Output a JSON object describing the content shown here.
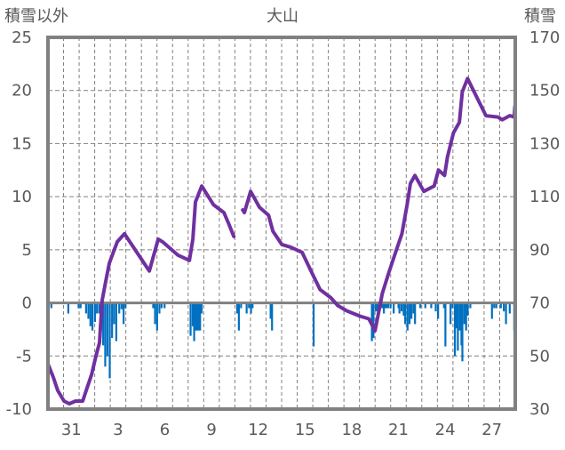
{
  "chart_data": {
    "type": "bar+line",
    "title": "大山",
    "ylabel_left": "積雪以外",
    "ylabel_right": "積雪",
    "ylim_left": [
      -10,
      25
    ],
    "ylim_right": [
      30,
      170
    ],
    "yticks_left": [
      "25",
      "20",
      "15",
      "10",
      "5",
      "0",
      "-5",
      "-10"
    ],
    "yticks_right": [
      "170",
      "150",
      "130",
      "110",
      "90",
      "70",
      "50",
      "30"
    ],
    "xlim_days": [
      0,
      30
    ],
    "xtick_labels": [
      "31",
      "3",
      "6",
      "9",
      "12",
      "15",
      "18",
      "21",
      "24",
      "27"
    ],
    "xtick_positions_days": [
      1.5,
      4.5,
      7.5,
      10.5,
      13.5,
      16.5,
      19.5,
      22.5,
      25.5,
      28.5
    ],
    "grid": true,
    "colors": {
      "line": "#7030a0",
      "bars": "#0070c0",
      "frame": "#808080",
      "grid": "#808080"
    },
    "series": [
      {
        "name": "積雪",
        "axis": "right",
        "type": "line",
        "points": [
          [
            0,
            47
          ],
          [
            0.34,
            42
          ],
          [
            0.63,
            37
          ],
          [
            1.03,
            33
          ],
          [
            1.37,
            32
          ],
          [
            1.77,
            33
          ],
          [
            2.23,
            33
          ],
          [
            2.45,
            37
          ],
          [
            2.8,
            43
          ],
          [
            3.08,
            50
          ],
          [
            3.31,
            55
          ],
          [
            3.48,
            71
          ],
          [
            3.77,
            80
          ],
          [
            3.94,
            85
          ],
          [
            4.45,
            93
          ],
          [
            4.91,
            96
          ],
          [
            6.51,
            82
          ],
          [
            7.08,
            94
          ],
          [
            7.36,
            93
          ],
          [
            8.33,
            88
          ],
          [
            9.08,
            86
          ],
          [
            9.3,
            94
          ],
          [
            9.47,
            108
          ],
          [
            9.87,
            114
          ],
          [
            10.62,
            107
          ],
          [
            11.3,
            104
          ],
          [
            11.59,
            100
          ],
          [
            11.93,
            95
          ],
          null,
          [
            12.5,
            105
          ],
          [
            12.61,
            104
          ],
          [
            13.01,
            112
          ],
          [
            13.58,
            106
          ],
          [
            14.16,
            103
          ],
          [
            14.44,
            97
          ],
          [
            15.01,
            92
          ],
          [
            15.58,
            91
          ],
          [
            16.32,
            89
          ],
          [
            16.89,
            82
          ],
          [
            17.47,
            75
          ],
          [
            18.15,
            72
          ],
          [
            18.61,
            69
          ],
          [
            19.18,
            67
          ],
          [
            20.03,
            65
          ],
          [
            20.6,
            64
          ],
          [
            21.0,
            59.5
          ],
          [
            21.46,
            73.5
          ],
          [
            21.86,
            81
          ],
          [
            22.32,
            89
          ],
          [
            22.72,
            96
          ],
          [
            23.06,
            107
          ],
          [
            23.27,
            115
          ],
          [
            23.56,
            118
          ],
          [
            24.13,
            112
          ],
          [
            24.79,
            114
          ],
          [
            25.07,
            120
          ],
          [
            25.46,
            118
          ],
          [
            25.65,
            125
          ],
          [
            26.03,
            134
          ],
          [
            26.41,
            138
          ],
          [
            26.6,
            149.5
          ],
          [
            26.94,
            154.5
          ],
          [
            28.12,
            140.5
          ],
          [
            28.88,
            140
          ],
          [
            29.17,
            139
          ],
          [
            29.64,
            140.5
          ],
          [
            29.93,
            140
          ],
          [
            29.98,
            144
          ]
        ]
      },
      {
        "name": "積雪以外",
        "axis": "left",
        "type": "bar",
        "points": [
          [
            0.21,
            -0.5
          ],
          [
            1.3,
            -1.0
          ],
          [
            1.96,
            -0.5
          ],
          [
            2.09,
            -0.5
          ],
          [
            2.44,
            -1.0
          ],
          [
            2.59,
            -1.5
          ],
          [
            2.72,
            -2.2
          ],
          [
            2.85,
            -2.6
          ],
          [
            3.01,
            -1.8
          ],
          [
            3.14,
            -1.0
          ],
          [
            3.29,
            -1.0
          ],
          [
            3.54,
            -4.0
          ],
          [
            3.67,
            -6.0
          ],
          [
            3.81,
            -5.0
          ],
          [
            3.96,
            -7.1
          ],
          [
            4.11,
            -3.3
          ],
          [
            4.24,
            -2.0
          ],
          [
            4.38,
            -3.6
          ],
          [
            4.57,
            -1.0
          ],
          [
            4.72,
            -0.6
          ],
          [
            4.85,
            -2.0
          ],
          [
            4.97,
            -0.5
          ],
          [
            6.75,
            -0.5
          ],
          [
            6.87,
            -2.0
          ],
          [
            7.0,
            -2.6
          ],
          [
            7.15,
            -1.0
          ],
          [
            7.29,
            -0.5
          ],
          [
            7.48,
            -0.5
          ],
          [
            9.15,
            -3.1
          ],
          [
            9.29,
            -2.2
          ],
          [
            9.38,
            -3.6
          ],
          [
            9.47,
            -2.6
          ],
          [
            9.57,
            -2.6
          ],
          [
            9.66,
            -2.6
          ],
          [
            9.76,
            -2.6
          ],
          [
            9.86,
            -1.0
          ],
          [
            12.14,
            -1.0
          ],
          [
            12.25,
            -2.6
          ],
          [
            12.39,
            -0.5
          ],
          [
            12.75,
            -1.0
          ],
          [
            12.9,
            -0.5
          ],
          [
            13.03,
            -1.0
          ],
          [
            13.13,
            -0.5
          ],
          [
            14.29,
            -1.5
          ],
          [
            14.38,
            -2.6
          ],
          [
            17.05,
            -4.1
          ],
          [
            20.79,
            -3.6
          ],
          [
            20.89,
            -3.3
          ],
          [
            21.04,
            -0.8
          ],
          [
            21.16,
            -0.8
          ],
          [
            21.27,
            -0.8
          ],
          [
            21.46,
            -0.5
          ],
          [
            21.56,
            -1.0
          ],
          [
            21.65,
            -0.5
          ],
          [
            21.75,
            -0.5
          ],
          [
            21.84,
            -0.5
          ],
          [
            21.99,
            -0.5
          ],
          [
            22.19,
            -1.0
          ],
          [
            22.5,
            -0.5
          ],
          [
            22.56,
            -1.0
          ],
          [
            22.7,
            -0.8
          ],
          [
            22.83,
            -1.2
          ],
          [
            22.93,
            -2.0
          ],
          [
            23.08,
            -2.6
          ],
          [
            23.21,
            -2.0
          ],
          [
            23.33,
            -1.5
          ],
          [
            23.46,
            -1.0
          ],
          [
            23.56,
            -2.0
          ],
          [
            23.9,
            -0.5
          ],
          [
            24.22,
            -0.5
          ],
          [
            24.6,
            -0.5
          ],
          [
            24.89,
            -0.8
          ],
          [
            25.04,
            -1.5
          ],
          [
            25.42,
            -0.5
          ],
          [
            25.51,
            -4.1
          ],
          [
            25.84,
            -2.0
          ],
          [
            25.97,
            -0.5
          ],
          [
            26.12,
            -5.0
          ],
          [
            26.22,
            -2.4
          ],
          [
            26.31,
            -4.5
          ],
          [
            26.44,
            -2.6
          ],
          [
            26.54,
            -4.0
          ],
          [
            26.6,
            -5.5
          ],
          [
            26.73,
            -2.0
          ],
          [
            26.84,
            -2.6
          ],
          [
            26.94,
            -1.2
          ],
          [
            27.11,
            -0.5
          ],
          [
            28.5,
            -1.5
          ],
          [
            28.64,
            -0.5
          ],
          [
            28.78,
            -0.5
          ],
          [
            29.07,
            -0.5
          ],
          [
            29.26,
            -0.8
          ],
          [
            29.4,
            -2.0
          ],
          [
            29.64,
            -1.0
          ],
          [
            29.93,
            -2.6
          ]
        ]
      }
    ]
  }
}
